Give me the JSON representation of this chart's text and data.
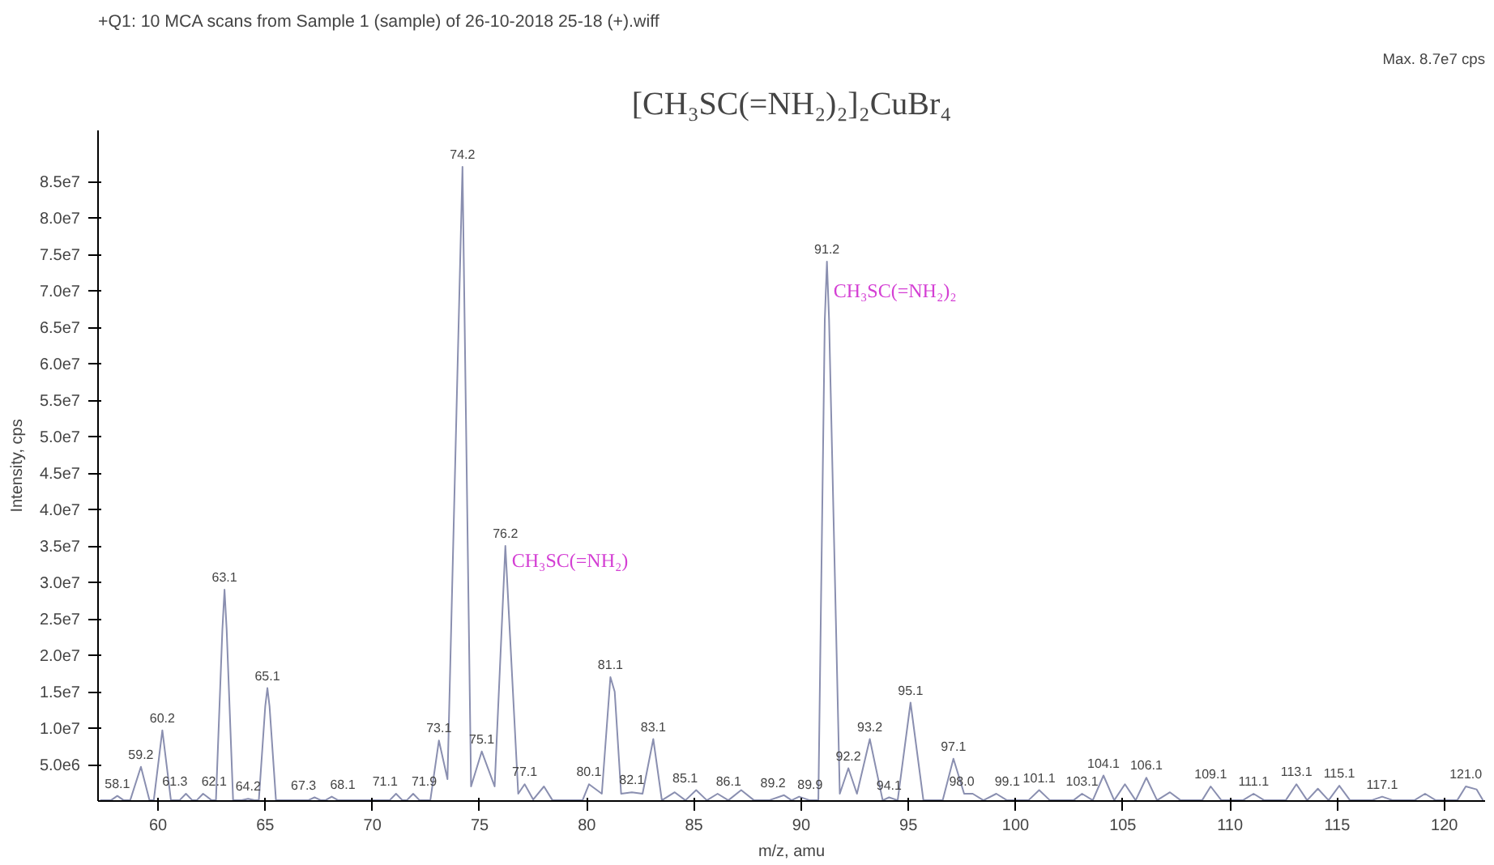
{
  "chart_data": {
    "type": "line",
    "title": "+Q1: 10 MCA scans from Sample 1 (sample) of 26-10-2018 25-18 (+).wiff",
    "xlabel": "m/z, amu",
    "ylabel": "Intensity, cps",
    "color": "#8a8fb0",
    "marker": "none",
    "line_style": "solid",
    "grid": false,
    "xlim": [
      57.2,
      121.9
    ],
    "ylim": [
      0,
      92000000.0
    ],
    "xticks": [
      60,
      65,
      70,
      75,
      80,
      85,
      90,
      95,
      100,
      105,
      110,
      115,
      120
    ],
    "yticks": [
      {
        "value": 5000000.0,
        "label": "5.0e6"
      },
      {
        "value": 10000000.0,
        "label": "1.0e7"
      },
      {
        "value": 15000000.0,
        "label": "1.5e7"
      },
      {
        "value": 20000000.0,
        "label": "2.0e7"
      },
      {
        "value": 25000000.0,
        "label": "2.5e7"
      },
      {
        "value": 30000000.0,
        "label": "3.0e7"
      },
      {
        "value": 35000000.0,
        "label": "3.5e7"
      },
      {
        "value": 40000000.0,
        "label": "4.0e7"
      },
      {
        "value": 45000000.0,
        "label": "4.5e7"
      },
      {
        "value": 50000000.0,
        "label": "5.0e7"
      },
      {
        "value": 55000000.0,
        "label": "5.5e7"
      },
      {
        "value": 60000000.0,
        "label": "6.0e7"
      },
      {
        "value": 65000000.0,
        "label": "6.5e7"
      },
      {
        "value": 70000000.0,
        "label": "7.0e7"
      },
      {
        "value": 75000000.0,
        "label": "7.5e7"
      },
      {
        "value": 80000000.0,
        "label": "8.0e7"
      },
      {
        "value": 85000000.0,
        "label": "8.5e7"
      }
    ],
    "x": [
      57.3,
      57.8,
      58.1,
      58.4,
      58.7,
      59.2,
      59.6,
      59.8,
      60.2,
      60.6,
      61.0,
      61.3,
      61.6,
      61.8,
      62.1,
      62.5,
      62.7,
      63.0,
      63.1,
      63.2,
      63.5,
      63.9,
      64.2,
      64.5,
      64.7,
      65.0,
      65.1,
      65.2,
      65.5,
      67.0,
      67.3,
      67.6,
      67.8,
      68.1,
      68.4,
      70.8,
      71.1,
      71.4,
      71.6,
      71.9,
      72.2,
      72.7,
      73.1,
      73.5,
      74.2,
      74.6,
      75.1,
      75.7,
      76.2,
      76.8,
      77.1,
      77.5,
      78.0,
      78.4,
      79.8,
      80.1,
      80.7,
      81.1,
      81.3,
      81.6,
      82.1,
      82.6,
      83.1,
      83.5,
      84.1,
      84.6,
      85.1,
      85.6,
      86.1,
      86.6,
      87.2,
      87.8,
      88.5,
      89.2,
      89.55,
      89.9,
      90.4,
      90.8,
      91.1,
      91.2,
      91.3,
      91.8,
      92.2,
      92.6,
      93.2,
      93.8,
      94.1,
      94.5,
      95.1,
      95.7,
      96.6,
      97.1,
      97.6,
      98.0,
      98.5,
      99.1,
      99.6,
      100.6,
      101.1,
      101.6,
      102.7,
      103.1,
      103.6,
      104.1,
      104.6,
      105.1,
      105.6,
      106.1,
      106.6,
      107.2,
      107.7,
      108.7,
      109.1,
      109.6,
      110.6,
      111.1,
      111.6,
      112.6,
      113.1,
      113.6,
      114.1,
      114.6,
      115.1,
      115.6,
      116.6,
      117.1,
      117.6,
      118.6,
      119.1,
      119.6,
      120.6,
      121.0,
      121.5,
      121.8
    ],
    "values": [
      100000.0,
      100000.0,
      700000.0,
      100000.0,
      100000.0,
      4700000.0,
      100000.0,
      100000.0,
      9700000.0,
      100000.0,
      100000.0,
      1000000.0,
      100000.0,
      100000.0,
      1000000.0,
      100000.0,
      100000.0,
      23500000.0,
      29000000.0,
      23500000.0,
      100000.0,
      100000.0,
      300000.0,
      100000.0,
      100000.0,
      13000000.0,
      15500000.0,
      13000000.0,
      100000.0,
      100000.0,
      500000.0,
      100000.0,
      100000.0,
      600000.0,
      100000.0,
      100000.0,
      1000000.0,
      100000.0,
      100000.0,
      1000000.0,
      100000.0,
      100000.0,
      8300000.0,
      3000000.0,
      87000000.0,
      2000000.0,
      6800000.0,
      2000000.0,
      35000000.0,
      1000000.0,
      2300000.0,
      200000.0,
      2000000.0,
      100000.0,
      100000.0,
      2300000.0,
      1000000.0,
      17000000.0,
      15000000.0,
      1000000.0,
      1200000.0,
      1000000.0,
      8500000.0,
      100000.0,
      1200000.0,
      100000.0,
      1500000.0,
      100000.0,
      1000000.0,
      100000.0,
      1500000.0,
      100000.0,
      100000.0,
      800000.0,
      100000.0,
      600000.0,
      100000.0,
      100000.0,
      66000000.0,
      74000000.0,
      66000000.0,
      1000000.0,
      4500000.0,
      1000000.0,
      8500000.0,
      100000.0,
      500000.0,
      100000.0,
      13500000.0,
      100000.0,
      100000.0,
      5800000.0,
      1000000.0,
      1000000.0,
      100000.0,
      1000000.0,
      100000.0,
      100000.0,
      1500000.0,
      100000.0,
      100000.0,
      1000000.0,
      100000.0,
      3500000.0,
      100000.0,
      2300000.0,
      100000.0,
      3200000.0,
      100000.0,
      1200000.0,
      100000.0,
      100000.0,
      2000000.0,
      100000.0,
      100000.0,
      1000000.0,
      100000.0,
      100000.0,
      2300000.0,
      100000.0,
      1700000.0,
      100000.0,
      2100000.0,
      100000.0,
      100000.0,
      600000.0,
      100000.0,
      100000.0,
      1000000.0,
      100000.0,
      100000.0,
      2000000.0,
      1600000.0,
      100000.0
    ],
    "annotations": [
      "[CH₃SC(=NH₂)₂]₂CuBr₄",
      "Max. 8.7e7 cps",
      {
        "text": "CH₃SC(=NH₂)",
        "x": 76.2,
        "y": 33000000.0
      },
      {
        "text": "CH₃SC(=NH₂)₂",
        "x": 91.2,
        "y": 70000000.0
      },
      {
        "text": "58.1",
        "x": 58.1,
        "y": 700000.0
      },
      {
        "text": "59.2",
        "x": 59.2,
        "y": 4700000.0
      },
      {
        "text": "60.2",
        "x": 60.2,
        "y": 9700000.0
      },
      {
        "text": "61.3",
        "x": 61.3,
        "y": 1000000.0
      },
      {
        "text": "62.1",
        "x": 62.1,
        "y": 1000000.0
      },
      {
        "text": "63.1",
        "x": 63.1,
        "y": 29000000.0
      },
      {
        "text": "64.2",
        "x": 64.2,
        "y": 300000.0
      },
      {
        "text": "65.1",
        "x": 65.1,
        "y": 15500000.0
      },
      {
        "text": "67.3",
        "x": 67.3,
        "y": 500000.0
      },
      {
        "text": "68.1",
        "x": 68.1,
        "y": 600000.0
      },
      {
        "text": "71.1",
        "x": 71.1,
        "y": 1000000.0
      },
      {
        "text": "71.9",
        "x": 71.9,
        "y": 1000000.0
      },
      {
        "text": "73.1",
        "x": 73.1,
        "y": 8300000.0
      },
      {
        "text": "74.2",
        "x": 74.2,
        "y": 87000000.0
      },
      {
        "text": "75.1",
        "x": 75.1,
        "y": 6800000.0
      },
      {
        "text": "76.2",
        "x": 76.2,
        "y": 35000000.0
      },
      {
        "text": "77.1",
        "x": 77.1,
        "y": 2300000.0
      },
      {
        "text": "80.1",
        "x": 80.1,
        "y": 2300000.0
      },
      {
        "text": "81.1",
        "x": 81.1,
        "y": 17000000.0
      },
      {
        "text": "82.1",
        "x": 82.1,
        "y": 1200000.0
      },
      {
        "text": "83.1",
        "x": 83.1,
        "y": 8500000.0
      },
      {
        "text": "85.1",
        "x": 85.1,
        "y": 1500000.0
      },
      {
        "text": "86.1",
        "x": 86.1,
        "y": 1000000.0
      },
      {
        "text": "89.2",
        "x": 89.2,
        "y": 800000.0
      },
      {
        "text": "89.9",
        "x": 89.9,
        "y": 600000.0
      },
      {
        "text": "91.2",
        "x": 91.2,
        "y": 74000000.0
      },
      {
        "text": "92.2",
        "x": 92.2,
        "y": 4500000.0
      },
      {
        "text": "93.2",
        "x": 93.2,
        "y": 8500000.0
      },
      {
        "text": "94.1",
        "x": 94.1,
        "y": 500000.0
      },
      {
        "text": "95.1",
        "x": 95.1,
        "y": 13500000.0
      },
      {
        "text": "97.1",
        "x": 97.1,
        "y": 5800000.0
      },
      {
        "text": "98.0",
        "x": 98.0,
        "y": 1000000.0
      },
      {
        "text": "99.1",
        "x": 99.1,
        "y": 1000000.0
      },
      {
        "text": "101.1",
        "x": 101.1,
        "y": 1500000.0
      },
      {
        "text": "103.1",
        "x": 103.1,
        "y": 1000000.0
      },
      {
        "text": "104.1",
        "x": 104.1,
        "y": 3500000.0
      },
      {
        "text": "106.1",
        "x": 106.1,
        "y": 3200000.0
      },
      {
        "text": "109.1",
        "x": 109.1,
        "y": 2000000.0
      },
      {
        "text": "111.1",
        "x": 111.1,
        "y": 1000000.0
      },
      {
        "text": "113.1",
        "x": 113.1,
        "y": 2300000.0
      },
      {
        "text": "115.1",
        "x": 115.1,
        "y": 2100000.0
      },
      {
        "text": "117.1",
        "x": 117.1,
        "y": 600000.0
      },
      {
        "text": "121.0",
        "x": 121.0,
        "y": 2000000.0
      }
    ]
  }
}
